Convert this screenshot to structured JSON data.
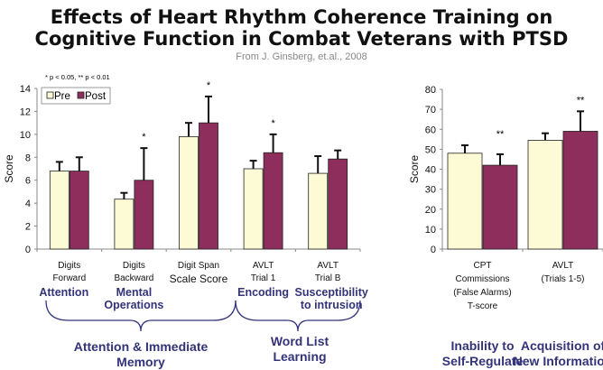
{
  "title_line1": "Effects of Heart Rhythm Coherence Training on",
  "title_line2": "Cognitive Function in Combat Veterans with PTSD",
  "subtitle": "From J. Ginsberg, et.al., 2008",
  "significance_note": "* p < 0.05, ** p < 0.01",
  "colors": {
    "pre": "#fdfbd6",
    "post": "#8e2e5c",
    "annotation": "#33337a"
  },
  "legend": [
    "Pre",
    "Post"
  ],
  "chart_data": [
    {
      "type": "bar",
      "ylabel": "Score",
      "ylim": [
        0,
        14
      ],
      "yticks": [
        0,
        2,
        4,
        6,
        8,
        10,
        12,
        14
      ],
      "legend_placement": "top-left",
      "categories": [
        {
          "lines": [
            "Digits",
            "Forward"
          ],
          "domain": [
            "Attention"
          ],
          "sig": ""
        },
        {
          "lines": [
            "Digits",
            "Backward"
          ],
          "domain": [
            "Mental",
            "Operations"
          ],
          "sig": "*"
        },
        {
          "lines": [
            "Digit Span",
            "Scale Score"
          ],
          "domain": [],
          "sig": "*"
        },
        {
          "lines": [
            "AVLT",
            "Trial 1"
          ],
          "domain": [
            "Encoding"
          ],
          "sig": "*"
        },
        {
          "lines": [
            "AVLT",
            "Trial B"
          ],
          "domain": [
            "Susceptibility",
            "to intrusion"
          ],
          "sig": ""
        }
      ],
      "series": [
        {
          "name": "Pre",
          "values": [
            6.8,
            4.35,
            9.8,
            7.0,
            6.6
          ],
          "error_upper": [
            7.6,
            4.9,
            11.0,
            7.7,
            8.1
          ]
        },
        {
          "name": "Post",
          "values": [
            6.8,
            6.0,
            11.0,
            8.4,
            7.85
          ],
          "error_upper": [
            8.0,
            8.8,
            13.3,
            10.0,
            8.6
          ]
        }
      ],
      "groups": [
        [
          "Attention & Immediate",
          "Memory"
        ],
        [
          "Word List",
          "Learning"
        ]
      ]
    },
    {
      "type": "bar",
      "ylabel": "Score",
      "ylim": [
        0,
        80
      ],
      "yticks": [
        0,
        10,
        20,
        30,
        40,
        50,
        60,
        70,
        80
      ],
      "categories": [
        {
          "lines": [
            "CPT",
            "Commissions",
            "(False Alarms)",
            "T-score"
          ],
          "domain": [
            "Inability to",
            "Self-Regulate"
          ],
          "sig": "**"
        },
        {
          "lines": [
            "AVLT",
            "(Trials 1-5)"
          ],
          "domain": [
            "Acquisition of",
            "New Information"
          ],
          "sig": "**"
        }
      ],
      "series": [
        {
          "name": "Pre",
          "values": [
            48,
            54.5
          ],
          "error_upper": [
            52,
            58
          ]
        },
        {
          "name": "Post",
          "values": [
            42,
            59
          ],
          "error_upper": [
            47.5,
            69
          ]
        }
      ]
    }
  ]
}
